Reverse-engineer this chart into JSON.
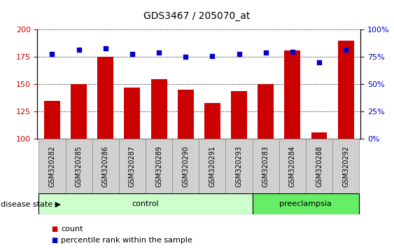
{
  "title": "GDS3467 / 205070_at",
  "samples": [
    "GSM320282",
    "GSM320285",
    "GSM320286",
    "GSM320287",
    "GSM320289",
    "GSM320290",
    "GSM320291",
    "GSM320293",
    "GSM320283",
    "GSM320284",
    "GSM320288",
    "GSM320292"
  ],
  "counts": [
    135,
    150,
    175,
    147,
    155,
    145,
    133,
    144,
    150,
    181,
    106,
    190
  ],
  "percentiles": [
    78,
    82,
    83,
    78,
    79,
    75,
    76,
    78,
    79,
    80,
    70,
    82
  ],
  "ylim_left": [
    100,
    200
  ],
  "ylim_right": [
    0,
    100
  ],
  "yticks_left": [
    100,
    125,
    150,
    175,
    200
  ],
  "yticks_right": [
    0,
    25,
    50,
    75,
    100
  ],
  "bar_color": "#cc0000",
  "dot_color": "#0000cc",
  "grid_color": "#000000",
  "n_control": 8,
  "n_preeclampsia": 4,
  "control_label": "control",
  "preeclampsia_label": "preeclampsia",
  "disease_state_label": "disease state",
  "legend_count_label": "count",
  "legend_percentile_label": "percentile rank within the sample",
  "control_bg": "#ccffcc",
  "preeclampsia_bg": "#66ee66",
  "xticklabel_bg": "#d0d0d0",
  "title_fontsize": 10,
  "tick_fontsize": 8,
  "label_fontsize": 7,
  "bar_width": 0.6
}
